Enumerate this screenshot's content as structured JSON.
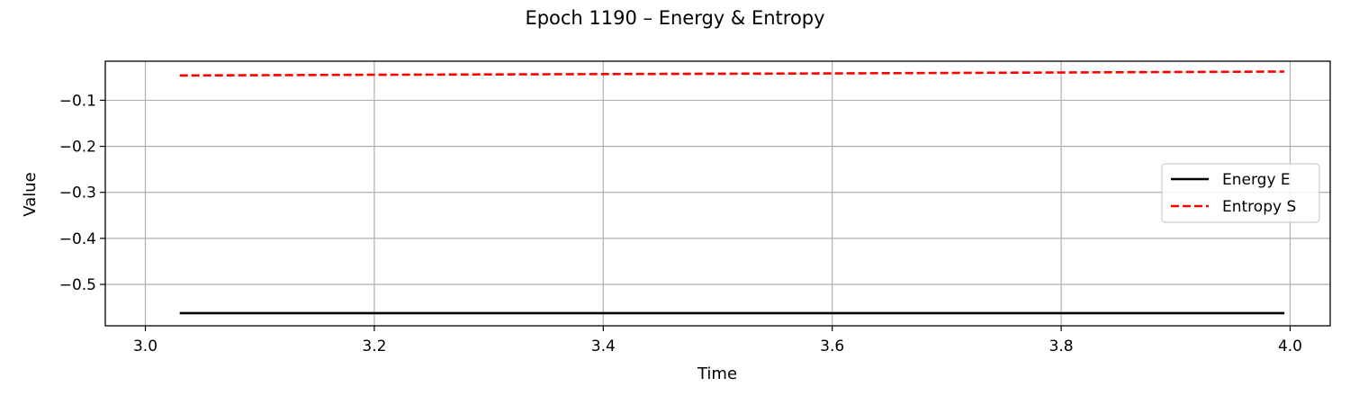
{
  "chart_data": {
    "type": "line",
    "title": "Epoch 1190 – Energy & Entropy",
    "xlabel": "Time",
    "ylabel": "Value",
    "xlim": [
      2.965,
      4.035
    ],
    "ylim": [
      -0.59,
      -0.015
    ],
    "x_ticks": [
      {
        "value": 3.0,
        "label": "3.0"
      },
      {
        "value": 3.2,
        "label": "3.2"
      },
      {
        "value": 3.4,
        "label": "3.4"
      },
      {
        "value": 3.6,
        "label": "3.6"
      },
      {
        "value": 3.8,
        "label": "3.8"
      },
      {
        "value": 4.0,
        "label": "4.0"
      }
    ],
    "y_ticks": [
      {
        "value": -0.1,
        "label": "−0.1"
      },
      {
        "value": -0.2,
        "label": "−0.2"
      },
      {
        "value": -0.3,
        "label": "−0.3"
      },
      {
        "value": -0.4,
        "label": "−0.4"
      },
      {
        "value": -0.5,
        "label": "−0.5"
      }
    ],
    "grid": true,
    "legend_position": "center-right",
    "series": [
      {
        "name": "Energy E",
        "color": "#000000",
        "style": "solid",
        "x": [
          3.03,
          3.2,
          3.4,
          3.6,
          3.8,
          3.995
        ],
        "y": [
          -0.5625,
          -0.5625,
          -0.5625,
          -0.5625,
          -0.5625,
          -0.5625
        ]
      },
      {
        "name": "Entropy S",
        "color": "#ff0000",
        "style": "dashed",
        "x": [
          3.03,
          3.2,
          3.4,
          3.6,
          3.8,
          3.995
        ],
        "y": [
          -0.046,
          -0.0445,
          -0.043,
          -0.0415,
          -0.0395,
          -0.0375
        ]
      }
    ]
  }
}
